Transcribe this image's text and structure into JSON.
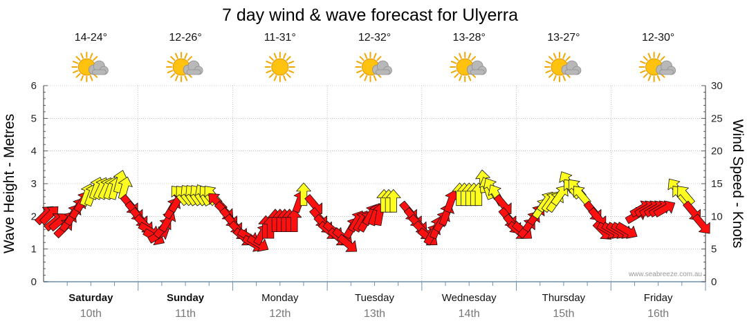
{
  "chart_data": {
    "type": "wind-wave-forecast",
    "title": "7 day wind & wave forecast for Ulyerra",
    "ylabel_left": "Wave Height - Metres",
    "ylabel_right": "Wind Speed - Knots",
    "ylim_left": [
      0,
      6
    ],
    "ylim_right": [
      0,
      30
    ],
    "yticks_left": [
      "0",
      "1",
      "2",
      "3",
      "4",
      "5",
      "6"
    ],
    "yticks_right": [
      "0",
      "5",
      "10",
      "15",
      "20",
      "25",
      "30"
    ],
    "credit": "www.seabreeze.com.au",
    "colors": {
      "onshore": "#ff1010",
      "offshore": "#ffff20",
      "grid": "#999999",
      "axis": "#6a8fb0"
    },
    "days": [
      {
        "name": "Saturday",
        "date": "10th",
        "temp": "14-24°",
        "bold": true,
        "icon": "sun-cloud-icon"
      },
      {
        "name": "Sunday",
        "date": "11th",
        "temp": "12-26°",
        "bold": true,
        "icon": "sun-cloud-icon"
      },
      {
        "name": "Monday",
        "date": "12th",
        "temp": "11-31°",
        "bold": false,
        "icon": "sun-icon"
      },
      {
        "name": "Tuesday",
        "date": "13th",
        "temp": "12-32°",
        "bold": false,
        "icon": "sun-cloud-icon"
      },
      {
        "name": "Wednesday",
        "date": "14th",
        "temp": "13-28°",
        "bold": false,
        "icon": "sun-cloud-icon"
      },
      {
        "name": "Thursday",
        "date": "15th",
        "temp": "13-27°",
        "bold": false,
        "icon": "sun-cloud-icon"
      },
      {
        "name": "Friday",
        "date": "16th",
        "temp": "12-30°",
        "bold": false,
        "icon": "sun-cloud-icon"
      }
    ],
    "wind": [
      {
        "t": 0.0,
        "knots": 10,
        "dir": 225,
        "c": "red"
      },
      {
        "t": 0.05,
        "knots": 10,
        "dir": 225,
        "c": "red"
      },
      {
        "t": 0.1,
        "knots": 9,
        "dir": 230,
        "c": "red"
      },
      {
        "t": 0.15,
        "knots": 9,
        "dir": 230,
        "c": "red"
      },
      {
        "t": 0.2,
        "knots": 8,
        "dir": 225,
        "c": "red"
      },
      {
        "t": 0.25,
        "knots": 9,
        "dir": 215,
        "c": "red"
      },
      {
        "t": 0.3,
        "knots": 10,
        "dir": 210,
        "c": "red"
      },
      {
        "t": 0.35,
        "knots": 11,
        "dir": 210,
        "c": "red"
      },
      {
        "t": 0.4,
        "knots": 12,
        "dir": 210,
        "c": "red"
      },
      {
        "t": 0.45,
        "knots": 13,
        "dir": 200,
        "c": "yellow"
      },
      {
        "t": 0.5,
        "knots": 13,
        "dir": 200,
        "c": "yellow"
      },
      {
        "t": 0.55,
        "knots": 14,
        "dir": 200,
        "c": "yellow"
      },
      {
        "t": 0.6,
        "knots": 14,
        "dir": 205,
        "c": "yellow"
      },
      {
        "t": 0.65,
        "knots": 14,
        "dir": 205,
        "c": "yellow"
      },
      {
        "t": 0.7,
        "knots": 14,
        "dir": 200,
        "c": "yellow"
      },
      {
        "t": 0.75,
        "knots": 14,
        "dir": 195,
        "c": "yellow"
      },
      {
        "t": 0.8,
        "knots": 15,
        "dir": 195,
        "c": "yellow"
      },
      {
        "t": 0.85,
        "knots": 14,
        "dir": 195,
        "c": "yellow"
      },
      {
        "t": 0.9,
        "knots": 12,
        "dir": 320,
        "c": "red"
      },
      {
        "t": 0.95,
        "knots": 11,
        "dir": 320,
        "c": "red"
      },
      {
        "t": 1.0,
        "knots": 10,
        "dir": 320,
        "c": "red"
      },
      {
        "t": 1.05,
        "knots": 9,
        "dir": 315,
        "c": "red"
      },
      {
        "t": 1.1,
        "knots": 8,
        "dir": 300,
        "c": "red"
      },
      {
        "t": 1.15,
        "knots": 7,
        "dir": 300,
        "c": "red"
      },
      {
        "t": 1.2,
        "knots": 7,
        "dir": 240,
        "c": "red"
      },
      {
        "t": 1.25,
        "knots": 8,
        "dir": 220,
        "c": "red"
      },
      {
        "t": 1.3,
        "knots": 9,
        "dir": 210,
        "c": "red"
      },
      {
        "t": 1.35,
        "knots": 11,
        "dir": 210,
        "c": "red"
      },
      {
        "t": 1.4,
        "knots": 12,
        "dir": 210,
        "c": "red"
      },
      {
        "t": 1.45,
        "knots": 13,
        "dir": 140,
        "c": "yellow"
      },
      {
        "t": 1.5,
        "knots": 13,
        "dir": 140,
        "c": "yellow"
      },
      {
        "t": 1.55,
        "knots": 13,
        "dir": 145,
        "c": "yellow"
      },
      {
        "t": 1.6,
        "knots": 13,
        "dir": 145,
        "c": "yellow"
      },
      {
        "t": 1.65,
        "knots": 13,
        "dir": 145,
        "c": "yellow"
      },
      {
        "t": 1.7,
        "knots": 13,
        "dir": 150,
        "c": "yellow"
      },
      {
        "t": 1.75,
        "knots": 13,
        "dir": 140,
        "c": "yellow"
      },
      {
        "t": 1.8,
        "knots": 13,
        "dir": 140,
        "c": "yellow"
      },
      {
        "t": 1.85,
        "knots": 12,
        "dir": 135,
        "c": "red"
      },
      {
        "t": 1.9,
        "knots": 11,
        "dir": 315,
        "c": "red"
      },
      {
        "t": 1.95,
        "knots": 10,
        "dir": 320,
        "c": "red"
      },
      {
        "t": 2.0,
        "knots": 9,
        "dir": 320,
        "c": "red"
      },
      {
        "t": 2.05,
        "knots": 8,
        "dir": 315,
        "c": "red"
      },
      {
        "t": 2.1,
        "knots": 7,
        "dir": 310,
        "c": "red"
      },
      {
        "t": 2.15,
        "knots": 7,
        "dir": 300,
        "c": "red"
      },
      {
        "t": 2.2,
        "knots": 6,
        "dir": 300,
        "c": "red"
      },
      {
        "t": 2.25,
        "knots": 6,
        "dir": 300,
        "c": "red"
      },
      {
        "t": 2.3,
        "knots": 7,
        "dir": 210,
        "c": "red"
      },
      {
        "t": 2.35,
        "knots": 8,
        "dir": 180,
        "c": "red"
      },
      {
        "t": 2.4,
        "knots": 8,
        "dir": 180,
        "c": "red"
      },
      {
        "t": 2.45,
        "knots": 9,
        "dir": 180,
        "c": "red"
      },
      {
        "t": 2.5,
        "knots": 9,
        "dir": 180,
        "c": "red"
      },
      {
        "t": 2.55,
        "knots": 9,
        "dir": 180,
        "c": "red"
      },
      {
        "t": 2.6,
        "knots": 9,
        "dir": 180,
        "c": "red"
      },
      {
        "t": 2.65,
        "knots": 9,
        "dir": 180,
        "c": "red"
      },
      {
        "t": 2.7,
        "knots": 12,
        "dir": 200,
        "c": "red"
      },
      {
        "t": 2.75,
        "knots": 13,
        "dir": 180,
        "c": "yellow"
      },
      {
        "t": 2.85,
        "knots": 12,
        "dir": 320,
        "c": "red"
      },
      {
        "t": 2.9,
        "knots": 10,
        "dir": 320,
        "c": "red"
      },
      {
        "t": 2.95,
        "knots": 9,
        "dir": 315,
        "c": "red"
      },
      {
        "t": 3.0,
        "knots": 8,
        "dir": 310,
        "c": "red"
      },
      {
        "t": 3.05,
        "knots": 8,
        "dir": 310,
        "c": "red"
      },
      {
        "t": 3.1,
        "knots": 7,
        "dir": 310,
        "c": "red"
      },
      {
        "t": 3.15,
        "knots": 7,
        "dir": 310,
        "c": "red"
      },
      {
        "t": 3.2,
        "knots": 6,
        "dir": 310,
        "c": "red"
      },
      {
        "t": 3.25,
        "knots": 8,
        "dir": 210,
        "c": "red"
      },
      {
        "t": 3.3,
        "knots": 9,
        "dir": 210,
        "c": "red"
      },
      {
        "t": 3.35,
        "knots": 9,
        "dir": 210,
        "c": "red"
      },
      {
        "t": 3.4,
        "knots": 9,
        "dir": 210,
        "c": "red"
      },
      {
        "t": 3.45,
        "knots": 10,
        "dir": 210,
        "c": "red"
      },
      {
        "t": 3.5,
        "knots": 10,
        "dir": 200,
        "c": "red"
      },
      {
        "t": 3.55,
        "knots": 10,
        "dir": 190,
        "c": "red"
      },
      {
        "t": 3.6,
        "knots": 12,
        "dir": 180,
        "c": "yellow"
      },
      {
        "t": 3.65,
        "knots": 12,
        "dir": 180,
        "c": "yellow"
      },
      {
        "t": 3.7,
        "knots": 12,
        "dir": 180,
        "c": "yellow"
      },
      {
        "t": 3.85,
        "knots": 11,
        "dir": 320,
        "c": "red"
      },
      {
        "t": 3.9,
        "knots": 10,
        "dir": 320,
        "c": "red"
      },
      {
        "t": 3.95,
        "knots": 9,
        "dir": 315,
        "c": "red"
      },
      {
        "t": 4.0,
        "knots": 8,
        "dir": 315,
        "c": "red"
      },
      {
        "t": 4.05,
        "knots": 7,
        "dir": 310,
        "c": "red"
      },
      {
        "t": 4.1,
        "knots": 7,
        "dir": 210,
        "c": "red"
      },
      {
        "t": 4.15,
        "knots": 8,
        "dir": 200,
        "c": "red"
      },
      {
        "t": 4.2,
        "knots": 9,
        "dir": 210,
        "c": "red"
      },
      {
        "t": 4.25,
        "knots": 10,
        "dir": 200,
        "c": "red"
      },
      {
        "t": 4.3,
        "knots": 12,
        "dir": 200,
        "c": "red"
      },
      {
        "t": 4.4,
        "knots": 13,
        "dir": 180,
        "c": "yellow"
      },
      {
        "t": 4.45,
        "knots": 13,
        "dir": 180,
        "c": "yellow"
      },
      {
        "t": 4.5,
        "knots": 13,
        "dir": 180,
        "c": "yellow"
      },
      {
        "t": 4.55,
        "knots": 13,
        "dir": 180,
        "c": "yellow"
      },
      {
        "t": 4.6,
        "knots": 13,
        "dir": 180,
        "c": "yellow"
      },
      {
        "t": 4.65,
        "knots": 15,
        "dir": 175,
        "c": "yellow"
      },
      {
        "t": 4.7,
        "knots": 14,
        "dir": 160,
        "c": "yellow"
      },
      {
        "t": 4.75,
        "knots": 14,
        "dir": 150,
        "c": "yellow"
      },
      {
        "t": 4.8,
        "knots": 13,
        "dir": 150,
        "c": "yellow"
      },
      {
        "t": 4.85,
        "knots": 12,
        "dir": 320,
        "c": "red"
      },
      {
        "t": 4.9,
        "knots": 10,
        "dir": 320,
        "c": "red"
      },
      {
        "t": 4.95,
        "knots": 9,
        "dir": 320,
        "c": "red"
      },
      {
        "t": 5.0,
        "knots": 8,
        "dir": 310,
        "c": "red"
      },
      {
        "t": 5.05,
        "knots": 8,
        "dir": 310,
        "c": "red"
      },
      {
        "t": 5.1,
        "knots": 8,
        "dir": 220,
        "c": "red"
      },
      {
        "t": 5.15,
        "knots": 9,
        "dir": 215,
        "c": "red"
      },
      {
        "t": 5.2,
        "knots": 10,
        "dir": 215,
        "c": "red"
      },
      {
        "t": 5.25,
        "knots": 11,
        "dir": 215,
        "c": "yellow"
      },
      {
        "t": 5.3,
        "knots": 12,
        "dir": 215,
        "c": "yellow"
      },
      {
        "t": 5.35,
        "knots": 12,
        "dir": 215,
        "c": "yellow"
      },
      {
        "t": 5.4,
        "knots": 12,
        "dir": 215,
        "c": "yellow"
      },
      {
        "t": 5.45,
        "knots": 13,
        "dir": 215,
        "c": "yellow"
      },
      {
        "t": 5.55,
        "knots": 15,
        "dir": 150,
        "c": "yellow"
      },
      {
        "t": 5.6,
        "knots": 14,
        "dir": 140,
        "c": "yellow"
      },
      {
        "t": 5.65,
        "knots": 14,
        "dir": 140,
        "c": "yellow"
      },
      {
        "t": 5.7,
        "knots": 13,
        "dir": 140,
        "c": "yellow"
      },
      {
        "t": 5.8,
        "knots": 11,
        "dir": 320,
        "c": "red"
      },
      {
        "t": 5.85,
        "knots": 10,
        "dir": 320,
        "c": "red"
      },
      {
        "t": 5.9,
        "knots": 8,
        "dir": 315,
        "c": "red"
      },
      {
        "t": 5.95,
        "knots": 8,
        "dir": 300,
        "c": "red"
      },
      {
        "t": 6.0,
        "knots": 8,
        "dir": 300,
        "c": "red"
      },
      {
        "t": 6.05,
        "knots": 8,
        "dir": 300,
        "c": "red"
      },
      {
        "t": 6.1,
        "knots": 8,
        "dir": 300,
        "c": "red"
      },
      {
        "t": 6.15,
        "knots": 8,
        "dir": 300,
        "c": "red"
      },
      {
        "t": 6.25,
        "knots": 10,
        "dir": 240,
        "c": "red"
      },
      {
        "t": 6.3,
        "knots": 11,
        "dir": 240,
        "c": "red"
      },
      {
        "t": 6.35,
        "knots": 11,
        "dir": 240,
        "c": "red"
      },
      {
        "t": 6.4,
        "knots": 11,
        "dir": 240,
        "c": "red"
      },
      {
        "t": 6.45,
        "knots": 11,
        "dir": 240,
        "c": "red"
      },
      {
        "t": 6.5,
        "knots": 11,
        "dir": 240,
        "c": "red"
      },
      {
        "t": 6.55,
        "knots": 11,
        "dir": 240,
        "c": "red"
      },
      {
        "t": 6.7,
        "knots": 14,
        "dir": 145,
        "c": "yellow"
      },
      {
        "t": 6.75,
        "knots": 13,
        "dir": 140,
        "c": "yellow"
      },
      {
        "t": 6.8,
        "knots": 13,
        "dir": 140,
        "c": "yellow"
      },
      {
        "t": 6.85,
        "knots": 11,
        "dir": 320,
        "c": "red"
      },
      {
        "t": 6.95,
        "knots": 9,
        "dir": 320,
        "c": "red"
      }
    ]
  }
}
